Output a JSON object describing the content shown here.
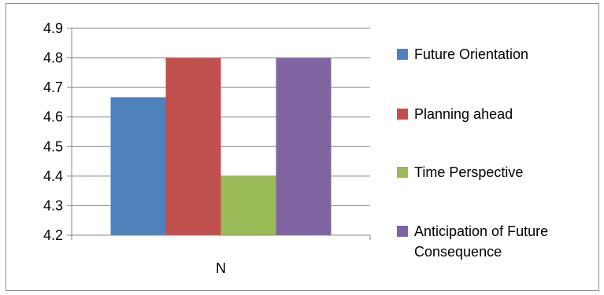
{
  "chart_data": {
    "type": "bar",
    "categories": [
      "N"
    ],
    "series": [
      {
        "name": "Future Orientation",
        "values": [
          4.667
        ],
        "color": "#4f81bd"
      },
      {
        "name": "Planning ahead",
        "values": [
          4.8
        ],
        "color": "#c0504d"
      },
      {
        "name": "Time Perspective",
        "values": [
          4.4
        ],
        "color": "#9bbb59"
      },
      {
        "name": "Anticipation of Future Consequence",
        "values": [
          4.8
        ],
        "color": "#8064a2"
      }
    ],
    "legend_lines": [
      [
        "Future Orientation"
      ],
      [
        "Planning ahead"
      ],
      [
        "Time Perspective"
      ],
      [
        "Anticipation of Future",
        "Consequence"
      ]
    ],
    "ylim": [
      4.2,
      4.9
    ],
    "yticks": [
      "4.2",
      "4.3",
      "4.4",
      "4.5",
      "4.6",
      "4.7",
      "4.8",
      "4.9"
    ],
    "grid": true,
    "legend_position": "right",
    "title": "",
    "xlabel": "",
    "ylabel": ""
  }
}
